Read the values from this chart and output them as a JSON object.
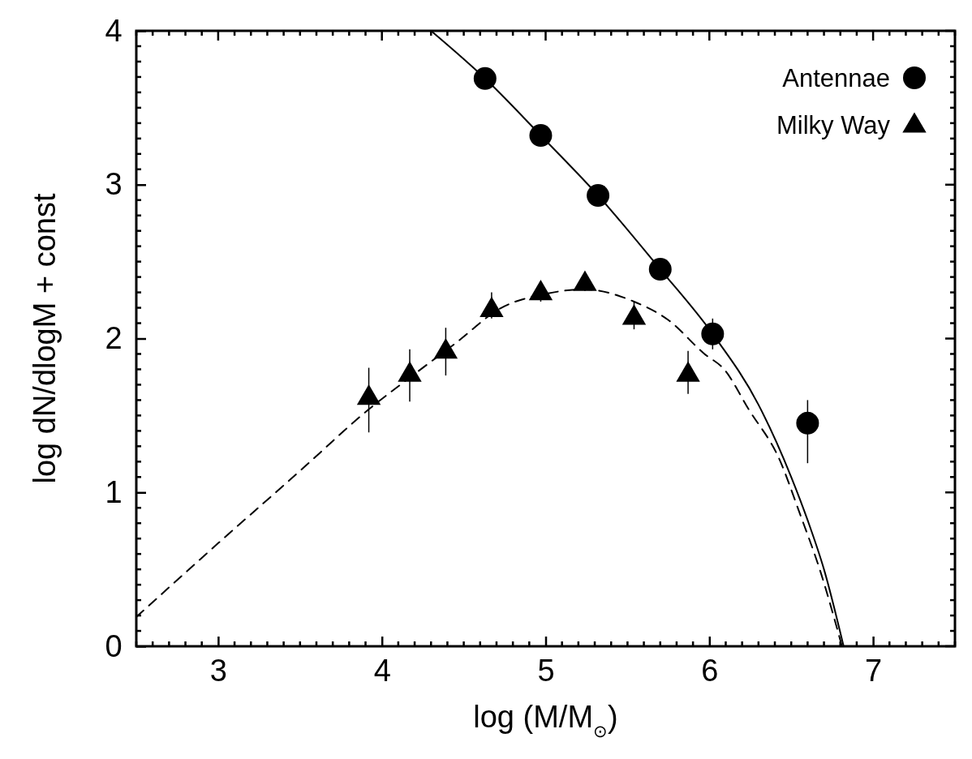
{
  "chart_data": {
    "type": "scatter",
    "xlabel": "log (M/M$_{⊙}$)",
    "ylabel": "log dN/dlogM + const",
    "xlim": [
      2.5,
      7.5
    ],
    "ylim": [
      0,
      4
    ],
    "xticks": [
      3,
      4,
      5,
      6,
      7
    ],
    "yticks": [
      0,
      1,
      2,
      3,
      4
    ],
    "legend": "top right",
    "series": [
      {
        "type": "line",
        "color": "#000000",
        "line_style": "solid",
        "x": [
          4.3,
          4.63,
          4.97,
          5.32,
          5.7,
          6.02,
          6.3,
          6.5,
          6.6,
          6.7,
          6.82
        ],
        "values": [
          4.0,
          3.69,
          3.32,
          2.93,
          2.45,
          2.03,
          1.57,
          1.1,
          0.82,
          0.5,
          0
        ]
      },
      {
        "type": "line",
        "color": "#000000",
        "line_style": "dashed",
        "x": [
          2.5,
          3.0,
          3.5,
          3.92,
          4.2,
          4.45,
          4.73,
          5.0,
          5.23,
          5.54,
          5.75,
          5.97,
          6.09,
          6.24,
          6.43,
          6.55,
          6.68,
          6.81
        ],
        "values": [
          0.19,
          0.67,
          1.14,
          1.54,
          1.77,
          1.97,
          2.2,
          2.29,
          2.32,
          2.24,
          2.12,
          1.9,
          1.8,
          1.54,
          1.21,
          0.87,
          0.48,
          0
        ]
      },
      {
        "name": "Antennae",
        "marker": "circle",
        "color": "#000000",
        "x": [
          4.63,
          4.97,
          5.32,
          5.7,
          6.02,
          6.6
        ],
        "values": [
          3.69,
          3.32,
          2.93,
          2.45,
          2.03,
          1.45
        ],
        "errors": [
          null,
          null,
          null,
          0.05,
          0.1,
          [
            1.19,
            1.6
          ]
        ]
      },
      {
        "name": "Milky Way",
        "marker": "triangle",
        "color": "#000000",
        "x": [
          3.92,
          4.17,
          4.39,
          4.67,
          4.97,
          5.24,
          5.54,
          5.87
        ],
        "values": [
          1.62,
          1.77,
          1.92,
          2.19,
          2.3,
          2.36,
          2.14,
          1.77
        ],
        "errors": [
          [
            1.39,
            1.81
          ],
          [
            1.59,
            1.93
          ],
          [
            1.76,
            2.07
          ],
          [
            2.13,
            2.3
          ],
          0.06,
          0.05,
          [
            2.06,
            2.24
          ],
          [
            1.64,
            1.92
          ]
        ]
      }
    ]
  }
}
